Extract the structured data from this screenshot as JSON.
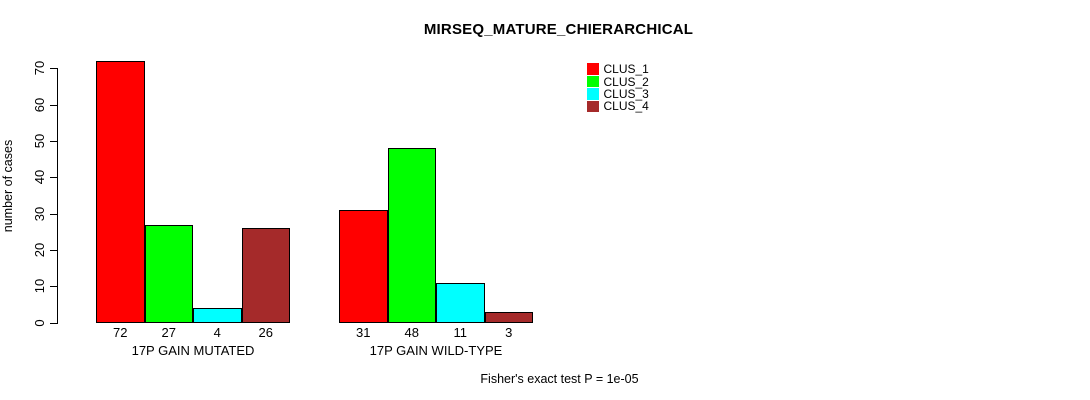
{
  "chart_data": {
    "type": "bar",
    "title": "MIRSEQ_MATURE_CHIERARCHICAL",
    "ylabel": "number of cases",
    "ylim": [
      0,
      72
    ],
    "yticks": [
      0,
      10,
      20,
      30,
      40,
      50,
      60,
      70
    ],
    "categories": [
      "17P GAIN MUTATED",
      "17P GAIN WILD-TYPE"
    ],
    "series": [
      {
        "name": "CLUS_1",
        "color": "#ff0000",
        "values": [
          72,
          31
        ]
      },
      {
        "name": "CLUS_2",
        "color": "#00ff00",
        "values": [
          27,
          48
        ]
      },
      {
        "name": "CLUS_3",
        "color": "#00ffff",
        "values": [
          4,
          11
        ]
      },
      {
        "name": "CLUS_4",
        "color": "#a52a2a",
        "values": [
          26,
          3
        ]
      }
    ],
    "bar_value_labels": true,
    "legend_position": "top-right",
    "grid": false,
    "background": "#ffffff",
    "annotation": "Fisher's exact test P = 1e-05"
  }
}
